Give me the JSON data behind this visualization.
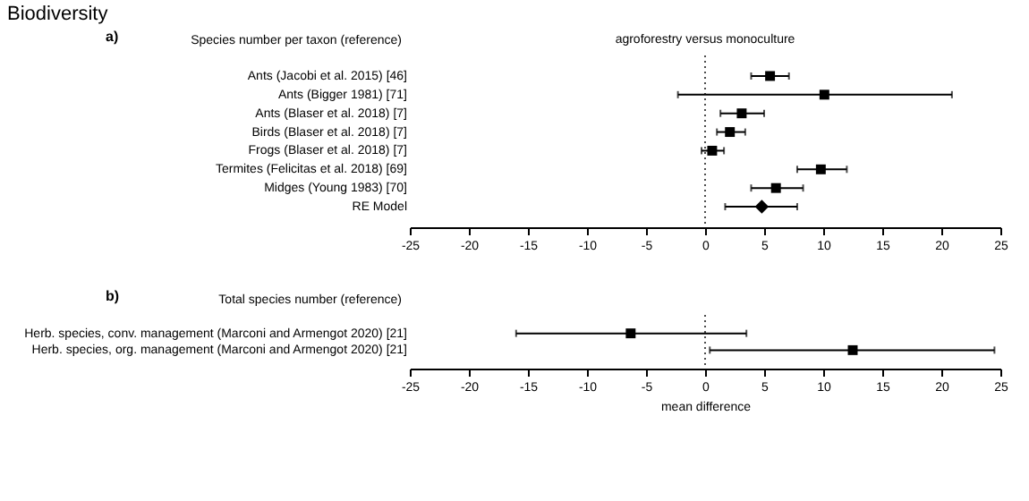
{
  "chart_data": [
    {
      "type": "scatter",
      "title": "Biodiversity",
      "ylabel": "Species number per taxon (reference)",
      "orientation": "horizontal",
      "annotations": [
        "a)",
        "agroforestry versus monoculture"
      ],
      "categories": [
        "Ants (Jacobi et al. 2015) [46]",
        "Ants (Bigger 1981) [71]",
        "Ants (Blaser et al. 2018) [7]",
        "Birds (Blaser et al. 2018) [7]",
        "Frogs (Blaser et al. 2018) [7]",
        "Termites (Felicitas et al. 2018) [69]",
        "Midges (Young 1983) [70]",
        "RE Model"
      ],
      "series": [
        {
          "color": "#000000",
          "marker": "square",
          "values": [
            5.5,
            10.1,
            3.1,
            2.1,
            0.6,
            9.8,
            6.0,
            null
          ],
          "errors": [
            [
              3.9,
              7.1
            ],
            [
              -2.3,
              20.9
            ],
            [
              1.3,
              5.0
            ],
            [
              1.0,
              3.4
            ],
            [
              -0.3,
              1.6
            ],
            [
              7.8,
              12.0
            ],
            [
              3.9,
              8.3
            ],
            null
          ]
        },
        {
          "color": "#000000",
          "marker": "diamond",
          "values": [
            null,
            null,
            null,
            null,
            null,
            null,
            null,
            4.8
          ],
          "errors": [
            null,
            null,
            null,
            null,
            null,
            null,
            null,
            [
              1.7,
              7.8
            ]
          ]
        }
      ],
      "xlim": [
        -25,
        25
      ],
      "xticks": [
        -25,
        -20,
        -15,
        -10,
        -5,
        0,
        5,
        10,
        15,
        20,
        25
      ],
      "grid": false,
      "ref_lines": [
        {
          "axis": "x",
          "value": 0,
          "color": "#000000",
          "line_style": "dotted"
        }
      ]
    },
    {
      "type": "scatter",
      "title": "b)",
      "ylabel": "Total species number (reference)",
      "xlabel": "mean difference",
      "orientation": "horizontal",
      "categories": [
        "Herb. species, conv. management (Marconi and Armengot 2020) [21]",
        "Herb. species, org. management (Marconi and Armengot 2020) [21]"
      ],
      "series": [
        {
          "color": "#000000",
          "marker": "square",
          "values": [
            -6.3,
            12.5
          ],
          "errors": [
            [
              -16.0,
              3.5
            ],
            [
              0.4,
              24.5
            ]
          ]
        }
      ],
      "xlim": [
        -25,
        25
      ],
      "xticks": [
        -25,
        -20,
        -15,
        -10,
        -5,
        0,
        5,
        10,
        15,
        20,
        25
      ],
      "grid": false,
      "ref_lines": [
        {
          "axis": "x",
          "value": 0,
          "color": "#000000",
          "line_style": "dotted"
        }
      ]
    }
  ]
}
